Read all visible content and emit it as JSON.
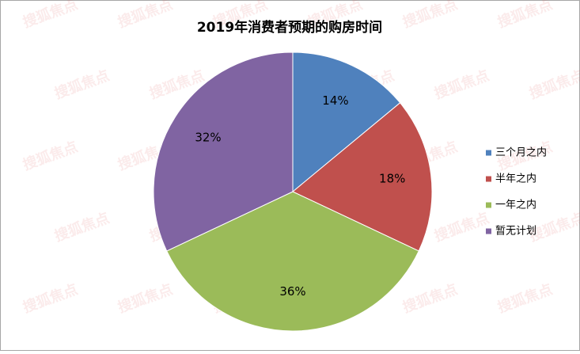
{
  "chart_data": {
    "type": "pie",
    "title": "2019年消费者预期的购房时间",
    "watermark": "搜狐焦点",
    "categories": [
      "三个月之内",
      "半年之内",
      "一年之内",
      "暂无计划"
    ],
    "values": [
      14,
      18,
      36,
      32
    ],
    "value_labels": [
      "14%",
      "18%",
      "36%",
      "32%"
    ],
    "colors": [
      "#4f81bd",
      "#c0504d",
      "#9bbb59",
      "#8064a2"
    ],
    "legend": "right"
  }
}
